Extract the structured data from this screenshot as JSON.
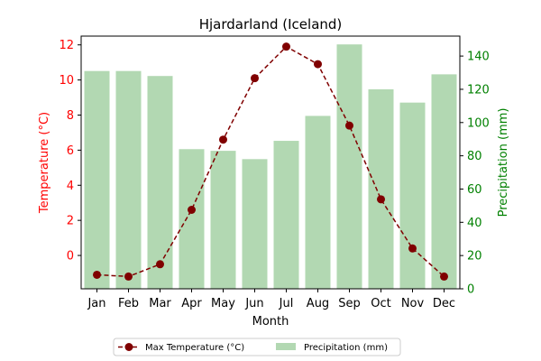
{
  "chart_data": {
    "type": "bar+line",
    "title": "Hjardarland (Iceland)",
    "xlabel": "Month",
    "ylabel_left": "Temperature (°C)",
    "ylabel_right": "Precipitation (mm)",
    "categories": [
      "Jan",
      "Feb",
      "Mar",
      "Apr",
      "May",
      "Jun",
      "Jul",
      "Aug",
      "Sep",
      "Oct",
      "Nov",
      "Dec"
    ],
    "series": [
      {
        "name": "Max Temperature (°C)",
        "type": "line",
        "axis": "left",
        "color": "#800000",
        "values": [
          -1.1,
          -1.2,
          -0.5,
          2.6,
          6.6,
          10.1,
          11.9,
          10.9,
          7.4,
          3.2,
          0.4,
          -1.2
        ]
      },
      {
        "name": "Precipitation (mm)",
        "type": "bar",
        "axis": "right",
        "color": "#b2d8b2",
        "values": [
          131,
          131,
          128,
          84,
          83,
          78,
          89,
          104,
          147,
          120,
          112,
          129
        ]
      }
    ],
    "ylim_left": [
      -1.9,
      12.5
    ],
    "yticks_left": [
      0,
      2,
      4,
      6,
      8,
      10,
      12
    ],
    "ylim_right": [
      0,
      152
    ],
    "yticks_right": [
      0,
      20,
      40,
      60,
      80,
      100,
      120,
      140
    ],
    "left_axis_color": "#ff0000",
    "right_axis_color": "#008000",
    "grid": false,
    "legend_position": "bottom-center"
  }
}
